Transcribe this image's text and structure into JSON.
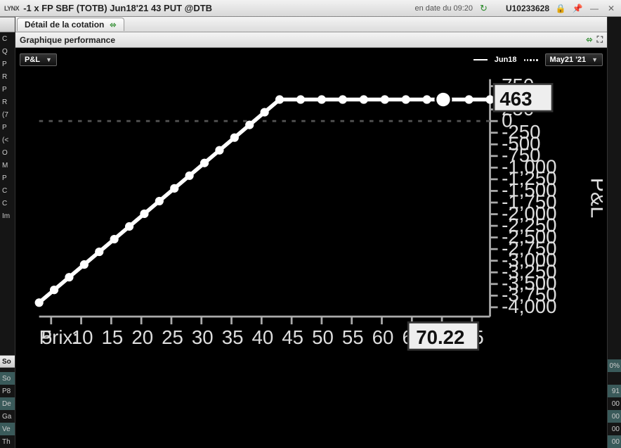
{
  "titlebar": {
    "logo": "LYNX",
    "title": "-1 x FP SBF (TOTB) Jun18'21 43 PUT @DTB",
    "timestamp": "en date du 09:20",
    "account": "U10233628"
  },
  "tab": {
    "label": "Détail de la cotation"
  },
  "panel": {
    "title": "Graphique performance"
  },
  "left_items": [
    "C",
    "Q",
    "P",
    "R",
    "P",
    "R",
    "(7",
    "P",
    "(<",
    "O",
    "M",
    "P",
    "C",
    "C",
    "Im"
  ],
  "left_lower": [
    "So",
    "So",
    "P8",
    "De",
    "Ga",
    "Ve",
    "Th"
  ],
  "right_items": [
    "",
    "",
    "",
    "0%",
    "",
    "91",
    "00",
    "00",
    "00",
    "00"
  ],
  "chart": {
    "type": "line",
    "dropdown_label": "P&L",
    "legend_solid": "Jun18",
    "legend_dotted": "May21 '21",
    "x_label": "Prix:",
    "x_ticks": [
      5,
      10,
      15,
      20,
      25,
      30,
      35,
      40,
      45,
      50,
      55,
      60,
      65,
      70,
      75
    ],
    "xlim": [
      3,
      78
    ],
    "y_ticks": [
      750,
      500,
      250,
      0,
      -250,
      -500,
      -750,
      -1000,
      -1250,
      -1500,
      -1750,
      -2000,
      -2250,
      -2500,
      -2750,
      -3000,
      -3250,
      -3500,
      -3750,
      -4000
    ],
    "ylim": [
      -4200,
      900
    ],
    "y_axis_label": "P&L",
    "zero_line_y": 0,
    "current_x": 70.22,
    "current_y": 463,
    "break_x": 43,
    "flat_y": 463,
    "start_x": 3,
    "start_y": -3900,
    "line_color": "#ffffff",
    "background": "#000000",
    "grid_color": "#555555",
    "text_color": "#dddddd"
  }
}
